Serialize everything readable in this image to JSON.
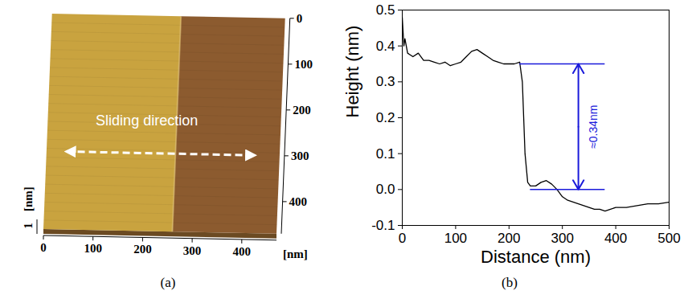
{
  "chart_data": [
    {
      "type": "surface",
      "caption": "(a)",
      "annotation": "Sliding direction",
      "xlabel": "[nm]",
      "xlim": [
        0,
        470
      ],
      "xticks": [
        0,
        100,
        200,
        300,
        400
      ],
      "ylim": [
        0,
        470
      ],
      "yticks": [
        0,
        100,
        200,
        300,
        400
      ],
      "zlabel": "[nm]",
      "zticks": [
        1
      ],
      "boundaries": [
        0,
        260,
        470
      ],
      "colors": [
        "#c9a33f",
        "#8c5b2f"
      ]
    },
    {
      "type": "line",
      "caption": "(b)",
      "xlabel": "Distance (nm)",
      "ylabel": "Height (nm)",
      "xlim": [
        0,
        500
      ],
      "xticks": [
        0,
        100,
        200,
        300,
        400,
        500
      ],
      "ylim": [
        -0.1,
        0.5
      ],
      "yticks": [
        -0.1,
        {
          "value": 0,
          "label": "0.0"
        },
        0.1,
        0.2,
        0.3,
        0.4,
        0.5
      ],
      "color": "#000000",
      "x": [
        0,
        3,
        5,
        10,
        20,
        30,
        40,
        50,
        60,
        70,
        80,
        90,
        100,
        110,
        120,
        130,
        140,
        150,
        160,
        170,
        180,
        190,
        200,
        210,
        220,
        225,
        230,
        235,
        240,
        250,
        260,
        270,
        280,
        290,
        300,
        310,
        320,
        330,
        340,
        350,
        360,
        370,
        380,
        390,
        400,
        420,
        440,
        460,
        480,
        500
      ],
      "values": [
        0.48,
        0.4,
        0.42,
        0.38,
        0.37,
        0.38,
        0.36,
        0.36,
        0.355,
        0.35,
        0.355,
        0.345,
        0.35,
        0.355,
        0.37,
        0.385,
        0.39,
        0.38,
        0.37,
        0.36,
        0.355,
        0.35,
        0.35,
        0.35,
        0.355,
        0.3,
        0.1,
        0.02,
        0.01,
        0.01,
        0.02,
        0.025,
        0.015,
        0.0,
        -0.02,
        -0.03,
        -0.035,
        -0.04,
        -0.045,
        -0.05,
        -0.055,
        -0.055,
        -0.06,
        -0.055,
        -0.05,
        -0.05,
        -0.045,
        -0.04,
        -0.04,
        -0.035
      ],
      "reference_lines": [
        {
          "y": 0.35,
          "x": [
            220,
            380
          ]
        },
        {
          "y": 0,
          "x": [
            240,
            380
          ]
        }
      ],
      "annotations": [
        {
          "text": "≈0.34nm",
          "x": 330,
          "y": [
            0,
            0.35
          ],
          "color": "#1a1adb"
        }
      ]
    }
  ]
}
